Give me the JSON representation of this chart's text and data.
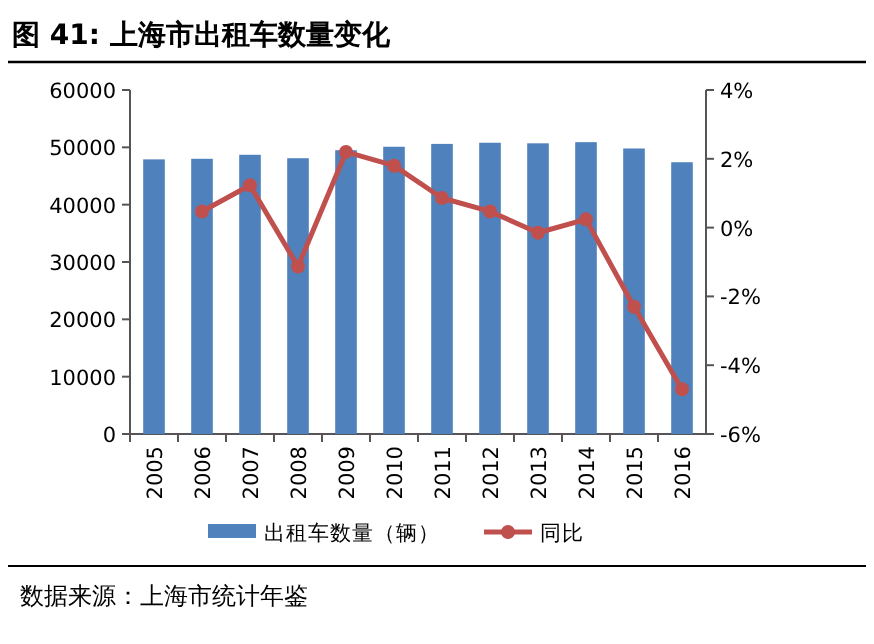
{
  "chart_data": {
    "type": "bar",
    "title": "图 41: 上海市出租车数量变化",
    "categories": [
      "2005",
      "2006",
      "2007",
      "2008",
      "2009",
      "2010",
      "2011",
      "2012",
      "2013",
      "2014",
      "2015",
      "2016"
    ],
    "series": [
      {
        "name": "出租车数量（辆）",
        "color": "#4f81bd",
        "values": [
          47900,
          48000,
          48700,
          48100,
          49500,
          50100,
          50600,
          50800,
          50700,
          50900,
          49800,
          47400
        ]
      },
      {
        "name": "同比",
        "type": "line",
        "axis": "y2",
        "color": "#c0504d",
        "marker": "circle",
        "values": [
          null,
          0.47,
          1.23,
          -1.13,
          2.2,
          1.8,
          0.86,
          0.47,
          -0.15,
          0.24,
          -2.3,
          -4.7
        ]
      }
    ],
    "ylim": [
      0,
      60000
    ],
    "yticks": [
      0,
      10000,
      20000,
      30000,
      40000,
      50000,
      60000
    ],
    "y2lim": [
      -6,
      4
    ],
    "y2ticks": [
      {
        "value": -6,
        "label": "-6%"
      },
      {
        "value": -4,
        "label": "-4%"
      },
      {
        "value": -2,
        "label": "-2%"
      },
      {
        "value": 0,
        "label": "0%"
      },
      {
        "value": 2,
        "label": "2%"
      },
      {
        "value": 4,
        "label": "4%"
      }
    ],
    "legend": "bottom",
    "grid": false,
    "annotations": [
      "数据来源：上海市统计年鉴"
    ]
  }
}
